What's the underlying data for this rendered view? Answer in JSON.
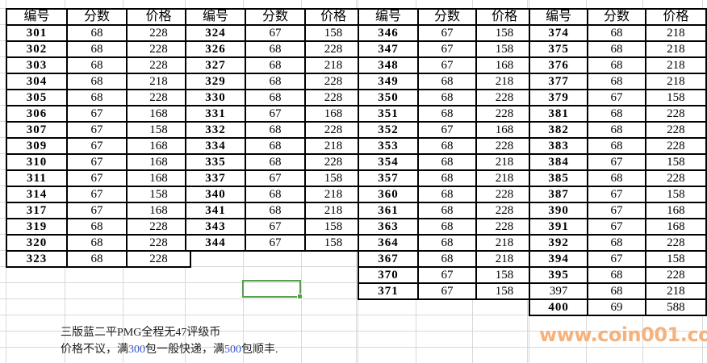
{
  "columns": {
    "id": "编号",
    "score": "分数",
    "price": "价格"
  },
  "tables": [
    {
      "rows": [
        {
          "id": "301",
          "score": "68",
          "price": "228"
        },
        {
          "id": "302",
          "score": "68",
          "price": "228"
        },
        {
          "id": "303",
          "score": "68",
          "price": "228"
        },
        {
          "id": "304",
          "score": "68",
          "price": "218"
        },
        {
          "id": "305",
          "score": "68",
          "price": "228"
        },
        {
          "id": "306",
          "score": "67",
          "price": "168"
        },
        {
          "id": "307",
          "score": "67",
          "price": "158"
        },
        {
          "id": "309",
          "score": "67",
          "price": "168"
        },
        {
          "id": "310",
          "score": "67",
          "price": "168"
        },
        {
          "id": "311",
          "score": "67",
          "price": "168"
        },
        {
          "id": "314",
          "score": "67",
          "price": "158"
        },
        {
          "id": "317",
          "score": "67",
          "price": "168"
        },
        {
          "id": "319",
          "score": "68",
          "price": "228"
        },
        {
          "id": "320",
          "score": "68",
          "price": "228"
        },
        {
          "id": "323",
          "score": "68",
          "price": "228"
        }
      ]
    },
    {
      "rows": [
        {
          "id": "324",
          "score": "67",
          "price": "158"
        },
        {
          "id": "326",
          "score": "68",
          "price": "228"
        },
        {
          "id": "327",
          "score": "68",
          "price": "218"
        },
        {
          "id": "329",
          "score": "68",
          "price": "228"
        },
        {
          "id": "330",
          "score": "68",
          "price": "228"
        },
        {
          "id": "331",
          "score": "67",
          "price": "168"
        },
        {
          "id": "332",
          "score": "68",
          "price": "228"
        },
        {
          "id": "334",
          "score": "68",
          "price": "218"
        },
        {
          "id": "335",
          "score": "68",
          "price": "228"
        },
        {
          "id": "337",
          "score": "67",
          "price": "158"
        },
        {
          "id": "340",
          "score": "68",
          "price": "218"
        },
        {
          "id": "341",
          "score": "68",
          "price": "218"
        },
        {
          "id": "343",
          "score": "67",
          "price": "158"
        },
        {
          "id": "344",
          "score": "67",
          "price": "158"
        }
      ]
    },
    {
      "rows": [
        {
          "id": "346",
          "score": "67",
          "price": "158"
        },
        {
          "id": "347",
          "score": "67",
          "price": "158"
        },
        {
          "id": "348",
          "score": "67",
          "price": "168"
        },
        {
          "id": "349",
          "score": "68",
          "price": "218"
        },
        {
          "id": "350",
          "score": "68",
          "price": "228"
        },
        {
          "id": "351",
          "score": "68",
          "price": "228"
        },
        {
          "id": "352",
          "score": "67",
          "price": "168"
        },
        {
          "id": "353",
          "score": "68",
          "price": "228"
        },
        {
          "id": "354",
          "score": "68",
          "price": "218"
        },
        {
          "id": "357",
          "score": "68",
          "price": "218"
        },
        {
          "id": "360",
          "score": "68",
          "price": "228"
        },
        {
          "id": "361",
          "score": "68",
          "price": "228"
        },
        {
          "id": "363",
          "score": "68",
          "price": "228"
        },
        {
          "id": "364",
          "score": "68",
          "price": "218"
        },
        {
          "id": "367",
          "score": "68",
          "price": "218"
        },
        {
          "id": "370",
          "score": "67",
          "price": "158"
        },
        {
          "id": "371",
          "score": "67",
          "price": "158"
        }
      ]
    },
    {
      "rows": [
        {
          "id": "374",
          "score": "68",
          "price": "218"
        },
        {
          "id": "375",
          "score": "68",
          "price": "218"
        },
        {
          "id": "376",
          "score": "68",
          "price": "218"
        },
        {
          "id": "377",
          "score": "68",
          "price": "218"
        },
        {
          "id": "379",
          "score": "67",
          "price": "158"
        },
        {
          "id": "381",
          "score": "68",
          "price": "228"
        },
        {
          "id": "382",
          "score": "68",
          "price": "228"
        },
        {
          "id": "383",
          "score": "68",
          "price": "228"
        },
        {
          "id": "384",
          "score": "67",
          "price": "158"
        },
        {
          "id": "385",
          "score": "68",
          "price": "228"
        },
        {
          "id": "387",
          "score": "67",
          "price": "158"
        },
        {
          "id": "390",
          "score": "67",
          "price": "168"
        },
        {
          "id": "391",
          "score": "67",
          "price": "168"
        },
        {
          "id": "392",
          "score": "68",
          "price": "228"
        },
        {
          "id": "394",
          "score": "67",
          "price": "158"
        },
        {
          "id": "395",
          "score": "68",
          "price": "228"
        },
        {
          "id": "397",
          "score": "68",
          "price": "218"
        },
        {
          "id": "400",
          "score": "69",
          "price": "588"
        }
      ]
    }
  ],
  "regular_weight_ids": [
    "397"
  ],
  "notes": {
    "line1": "三版蓝二平PMG全程无47评级币",
    "line2": {
      "part1": "价格不议，满",
      "num1": "300",
      "part2": "包一般快递，满",
      "num2": "500",
      "part3": "包顺丰."
    }
  },
  "watermark": {
    "text": "www.coin001.com",
    "color": "#f6b27d"
  },
  "colors": {
    "selection_green": "#55a04e",
    "grid_line": "#d9d9d9",
    "table_border": "#000000",
    "note_number_blue": "#3b55cc"
  }
}
